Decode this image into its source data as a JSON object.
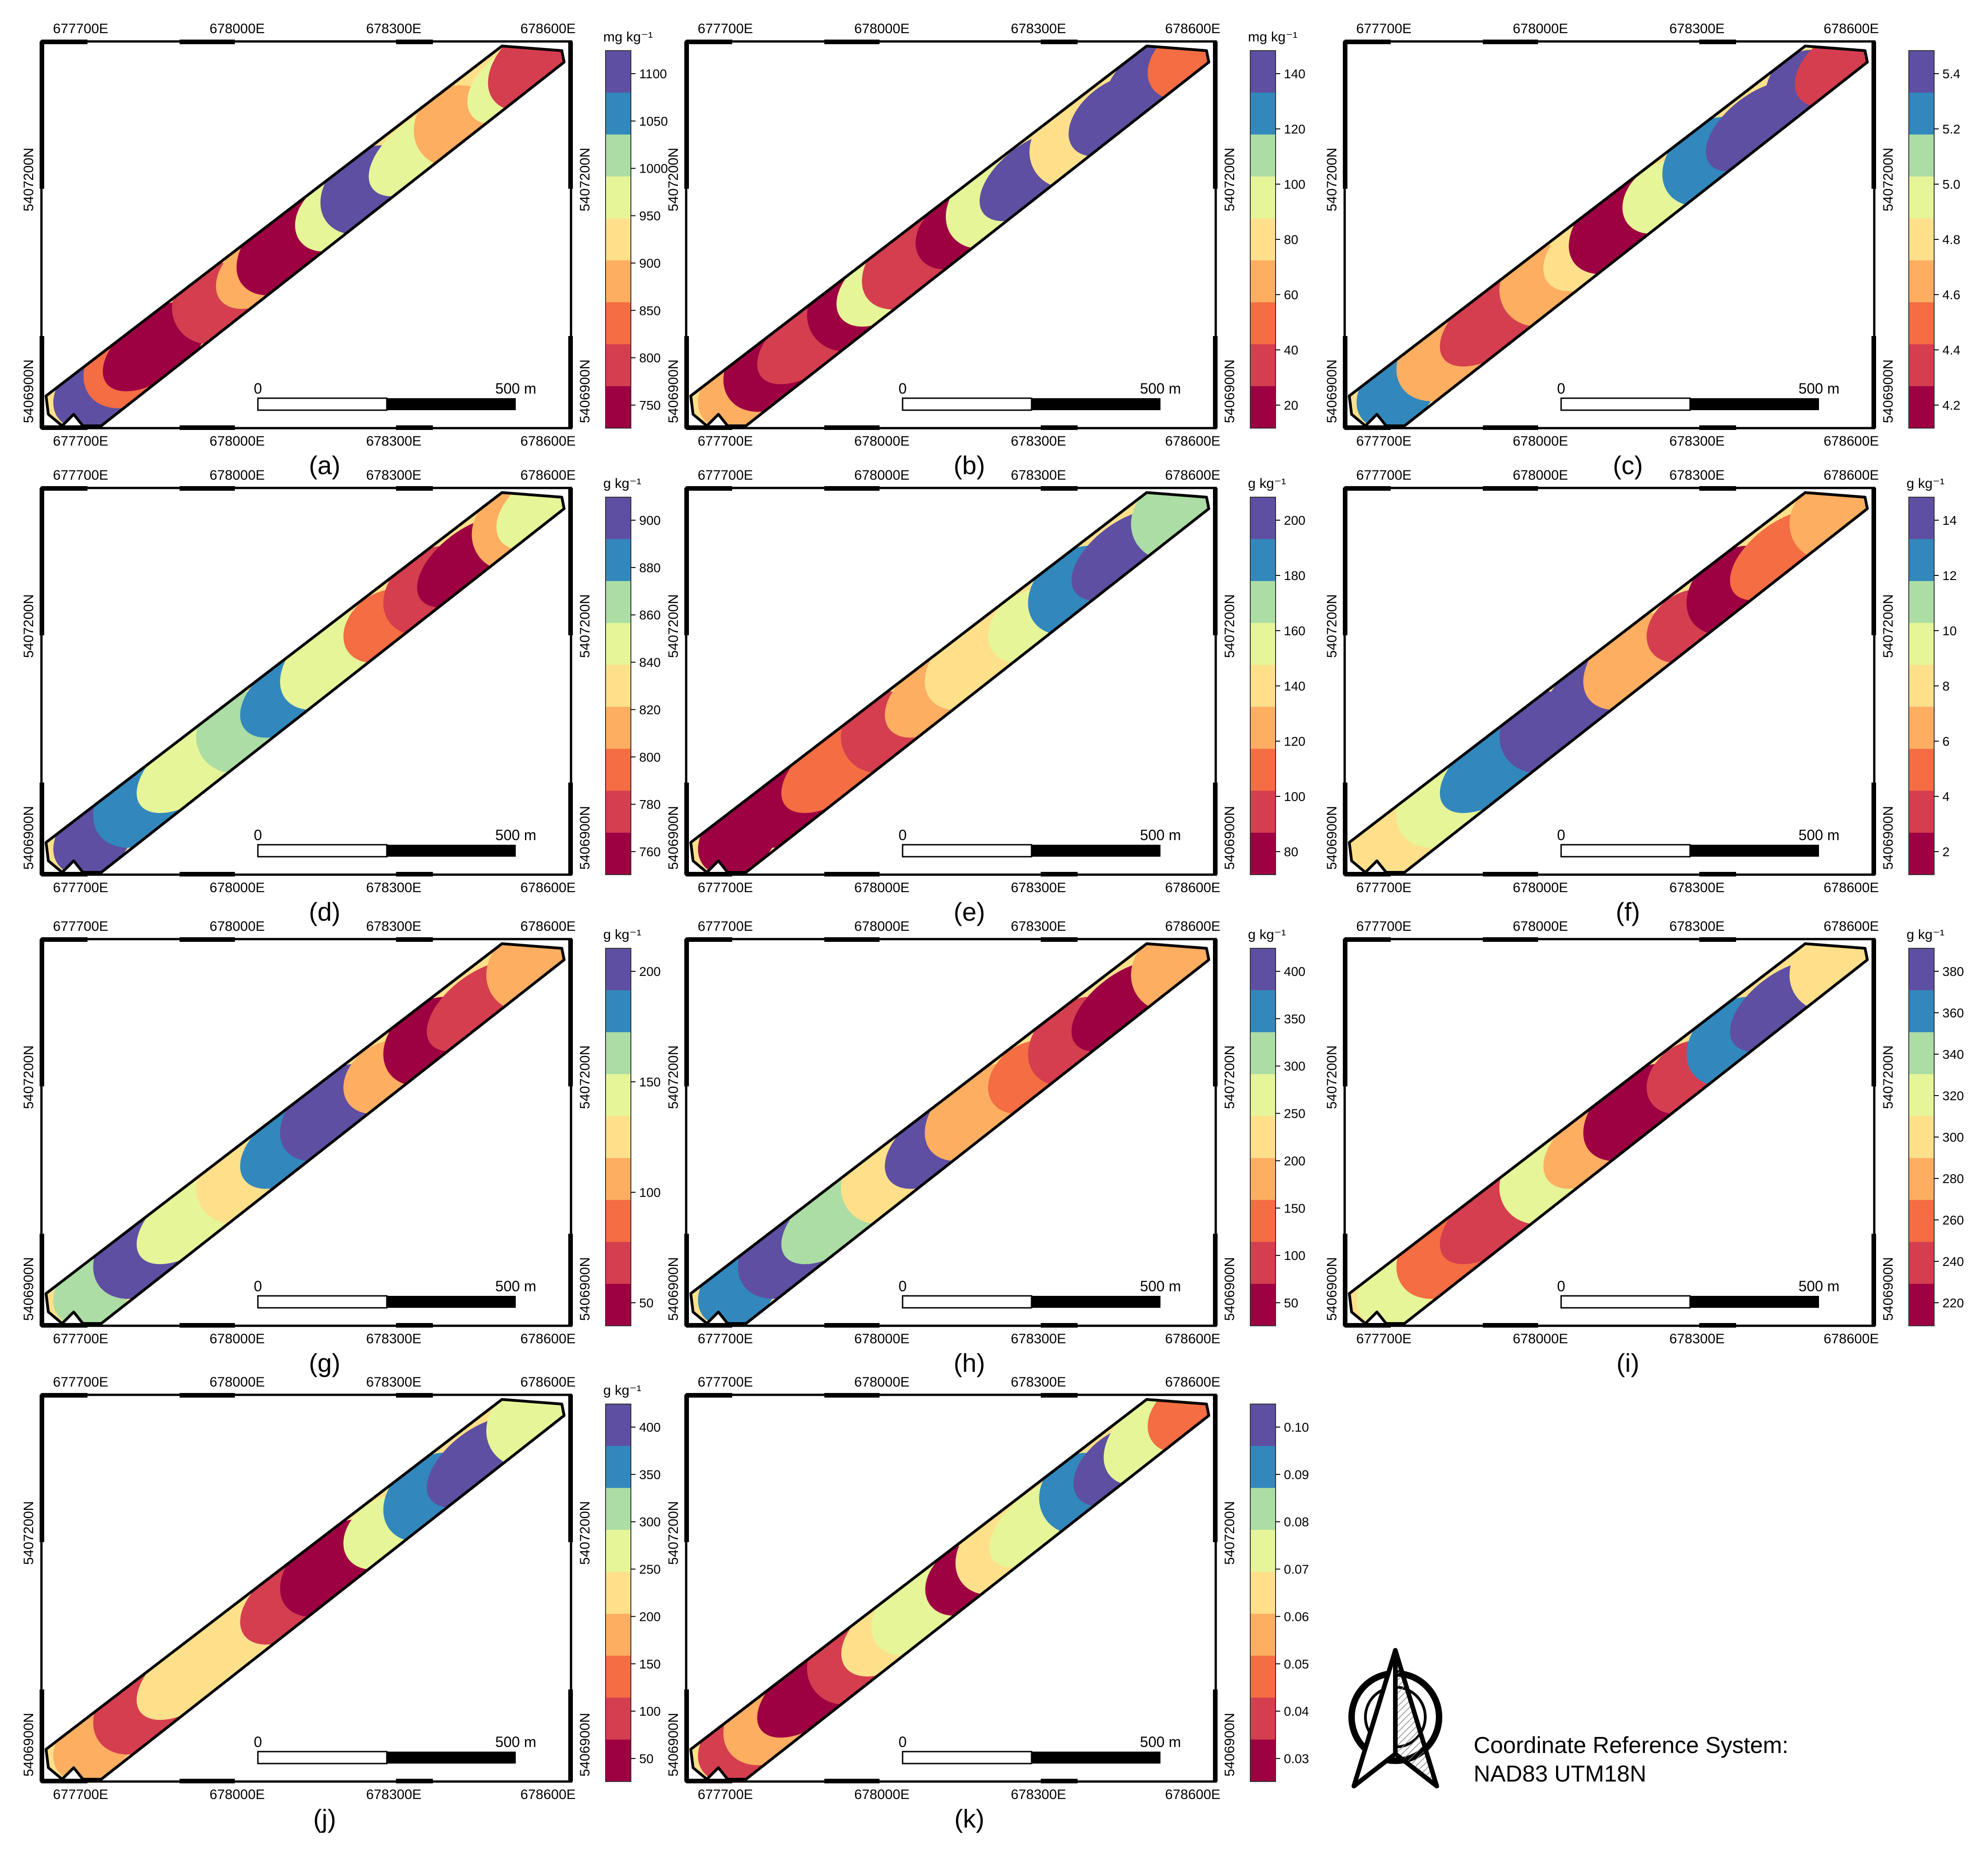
{
  "colors": {
    "frame": "#000000",
    "palette": [
      "#9e0142",
      "#d53e4f",
      "#f46d43",
      "#fdae61",
      "#fee08b",
      "#e6f598",
      "#abdda4",
      "#3288bd",
      "#5e4fa2"
    ]
  },
  "coord_labels": {
    "easting": [
      "677700E",
      "678000E",
      "678300E",
      "678600E"
    ],
    "northing": [
      "5407200N",
      "5406900N"
    ]
  },
  "scale_bar": {
    "start": "0",
    "end": "500 m"
  },
  "panels": [
    {
      "label": "(a)",
      "unit": "mg kg⁻¹",
      "ticks": [
        "1100",
        "1050",
        "1000",
        "950",
        "900",
        "850",
        "800",
        "750"
      ]
    },
    {
      "label": "(b)",
      "unit": "mg kg⁻¹",
      "ticks": [
        "140",
        "120",
        "100",
        "80",
        "60",
        "40",
        "20"
      ]
    },
    {
      "label": "(c)",
      "unit": "",
      "ticks": [
        "5.4",
        "5.2",
        "5.0",
        "4.8",
        "4.6",
        "4.4",
        "4.2"
      ]
    },
    {
      "label": "(d)",
      "unit": "g kg⁻¹",
      "ticks": [
        "900",
        "880",
        "860",
        "840",
        "820",
        "800",
        "780",
        "760"
      ]
    },
    {
      "label": "(e)",
      "unit": "g kg⁻¹",
      "ticks": [
        "200",
        "180",
        "160",
        "140",
        "120",
        "100",
        "80"
      ]
    },
    {
      "label": "(f)",
      "unit": "g kg⁻¹",
      "ticks": [
        "14",
        "12",
        "10",
        "8",
        "6",
        "4",
        "2"
      ]
    },
    {
      "label": "(g)",
      "unit": "g kg⁻¹",
      "ticks": [
        "200",
        "150",
        "100",
        "50"
      ]
    },
    {
      "label": "(h)",
      "unit": "g kg⁻¹",
      "ticks": [
        "400",
        "350",
        "300",
        "250",
        "200",
        "150",
        "100",
        "50"
      ]
    },
    {
      "label": "(i)",
      "unit": "g kg⁻¹",
      "ticks": [
        "380",
        "360",
        "340",
        "320",
        "300",
        "280",
        "260",
        "240",
        "220"
      ]
    },
    {
      "label": "(j)",
      "unit": "g kg⁻¹",
      "ticks": [
        "400",
        "350",
        "300",
        "250",
        "200",
        "150",
        "100",
        "50"
      ]
    },
    {
      "label": "(k)",
      "unit": "",
      "ticks": [
        "0.10",
        "0.09",
        "0.08",
        "0.07",
        "0.06",
        "0.05",
        "0.04",
        "0.03"
      ]
    }
  ],
  "crs": {
    "line1": "Coordinate Reference System:",
    "line2": "NAD83 UTM18N"
  }
}
